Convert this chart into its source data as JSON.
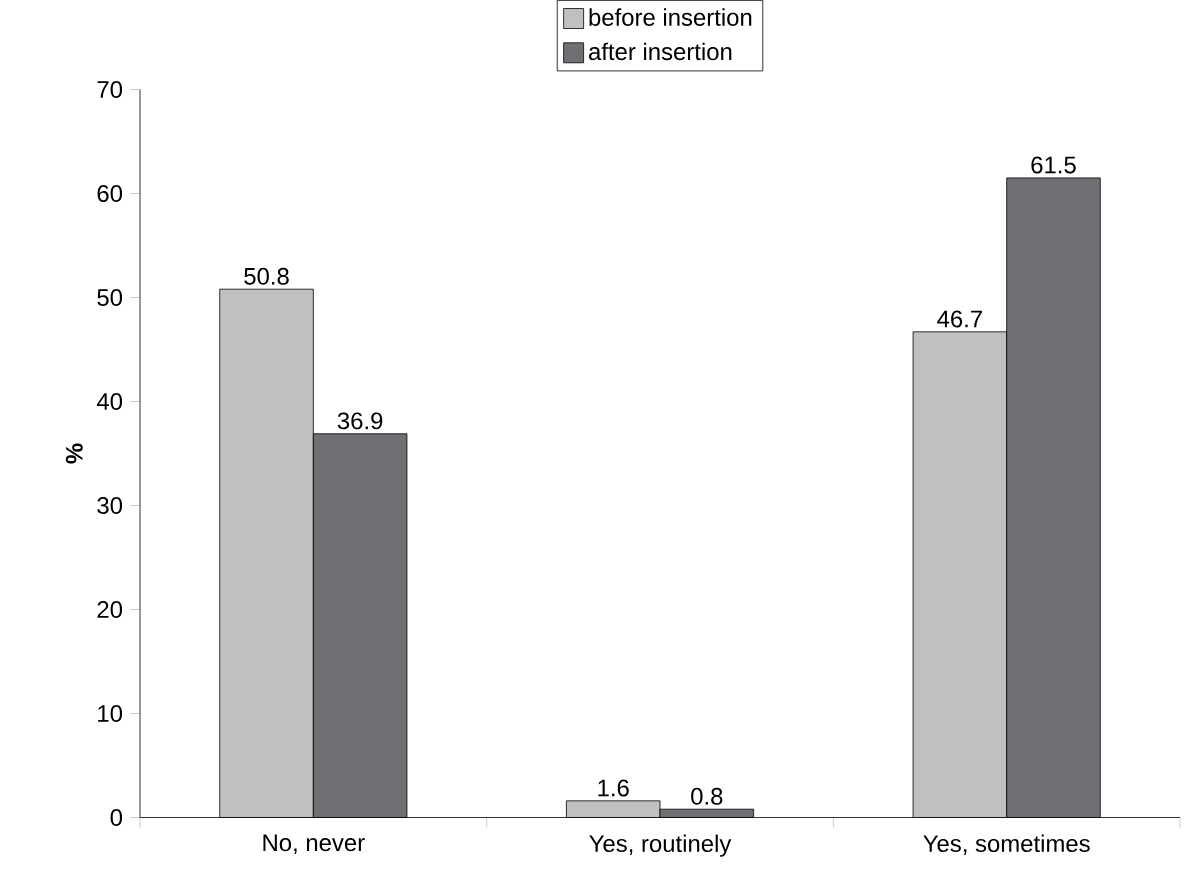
{
  "chart_data": {
    "type": "bar",
    "categories": [
      "No, never",
      "Yes, routinely",
      "Yes, sometimes"
    ],
    "ylabel": "%",
    "series": [
      {
        "name": "before insertion",
        "color": "#c0c0c0",
        "values": [
          50.8,
          1.6,
          46.7
        ]
      },
      {
        "name": "after insertion",
        "color": "#6f6f74",
        "values": [
          36.9,
          0.8,
          61.5
        ]
      }
    ],
    "ylim": [
      0,
      70
    ],
    "yticks": [
      0,
      10,
      20,
      30,
      40,
      50,
      60,
      70
    ],
    "data_labels": true,
    "legend": "top",
    "grid": false
  }
}
